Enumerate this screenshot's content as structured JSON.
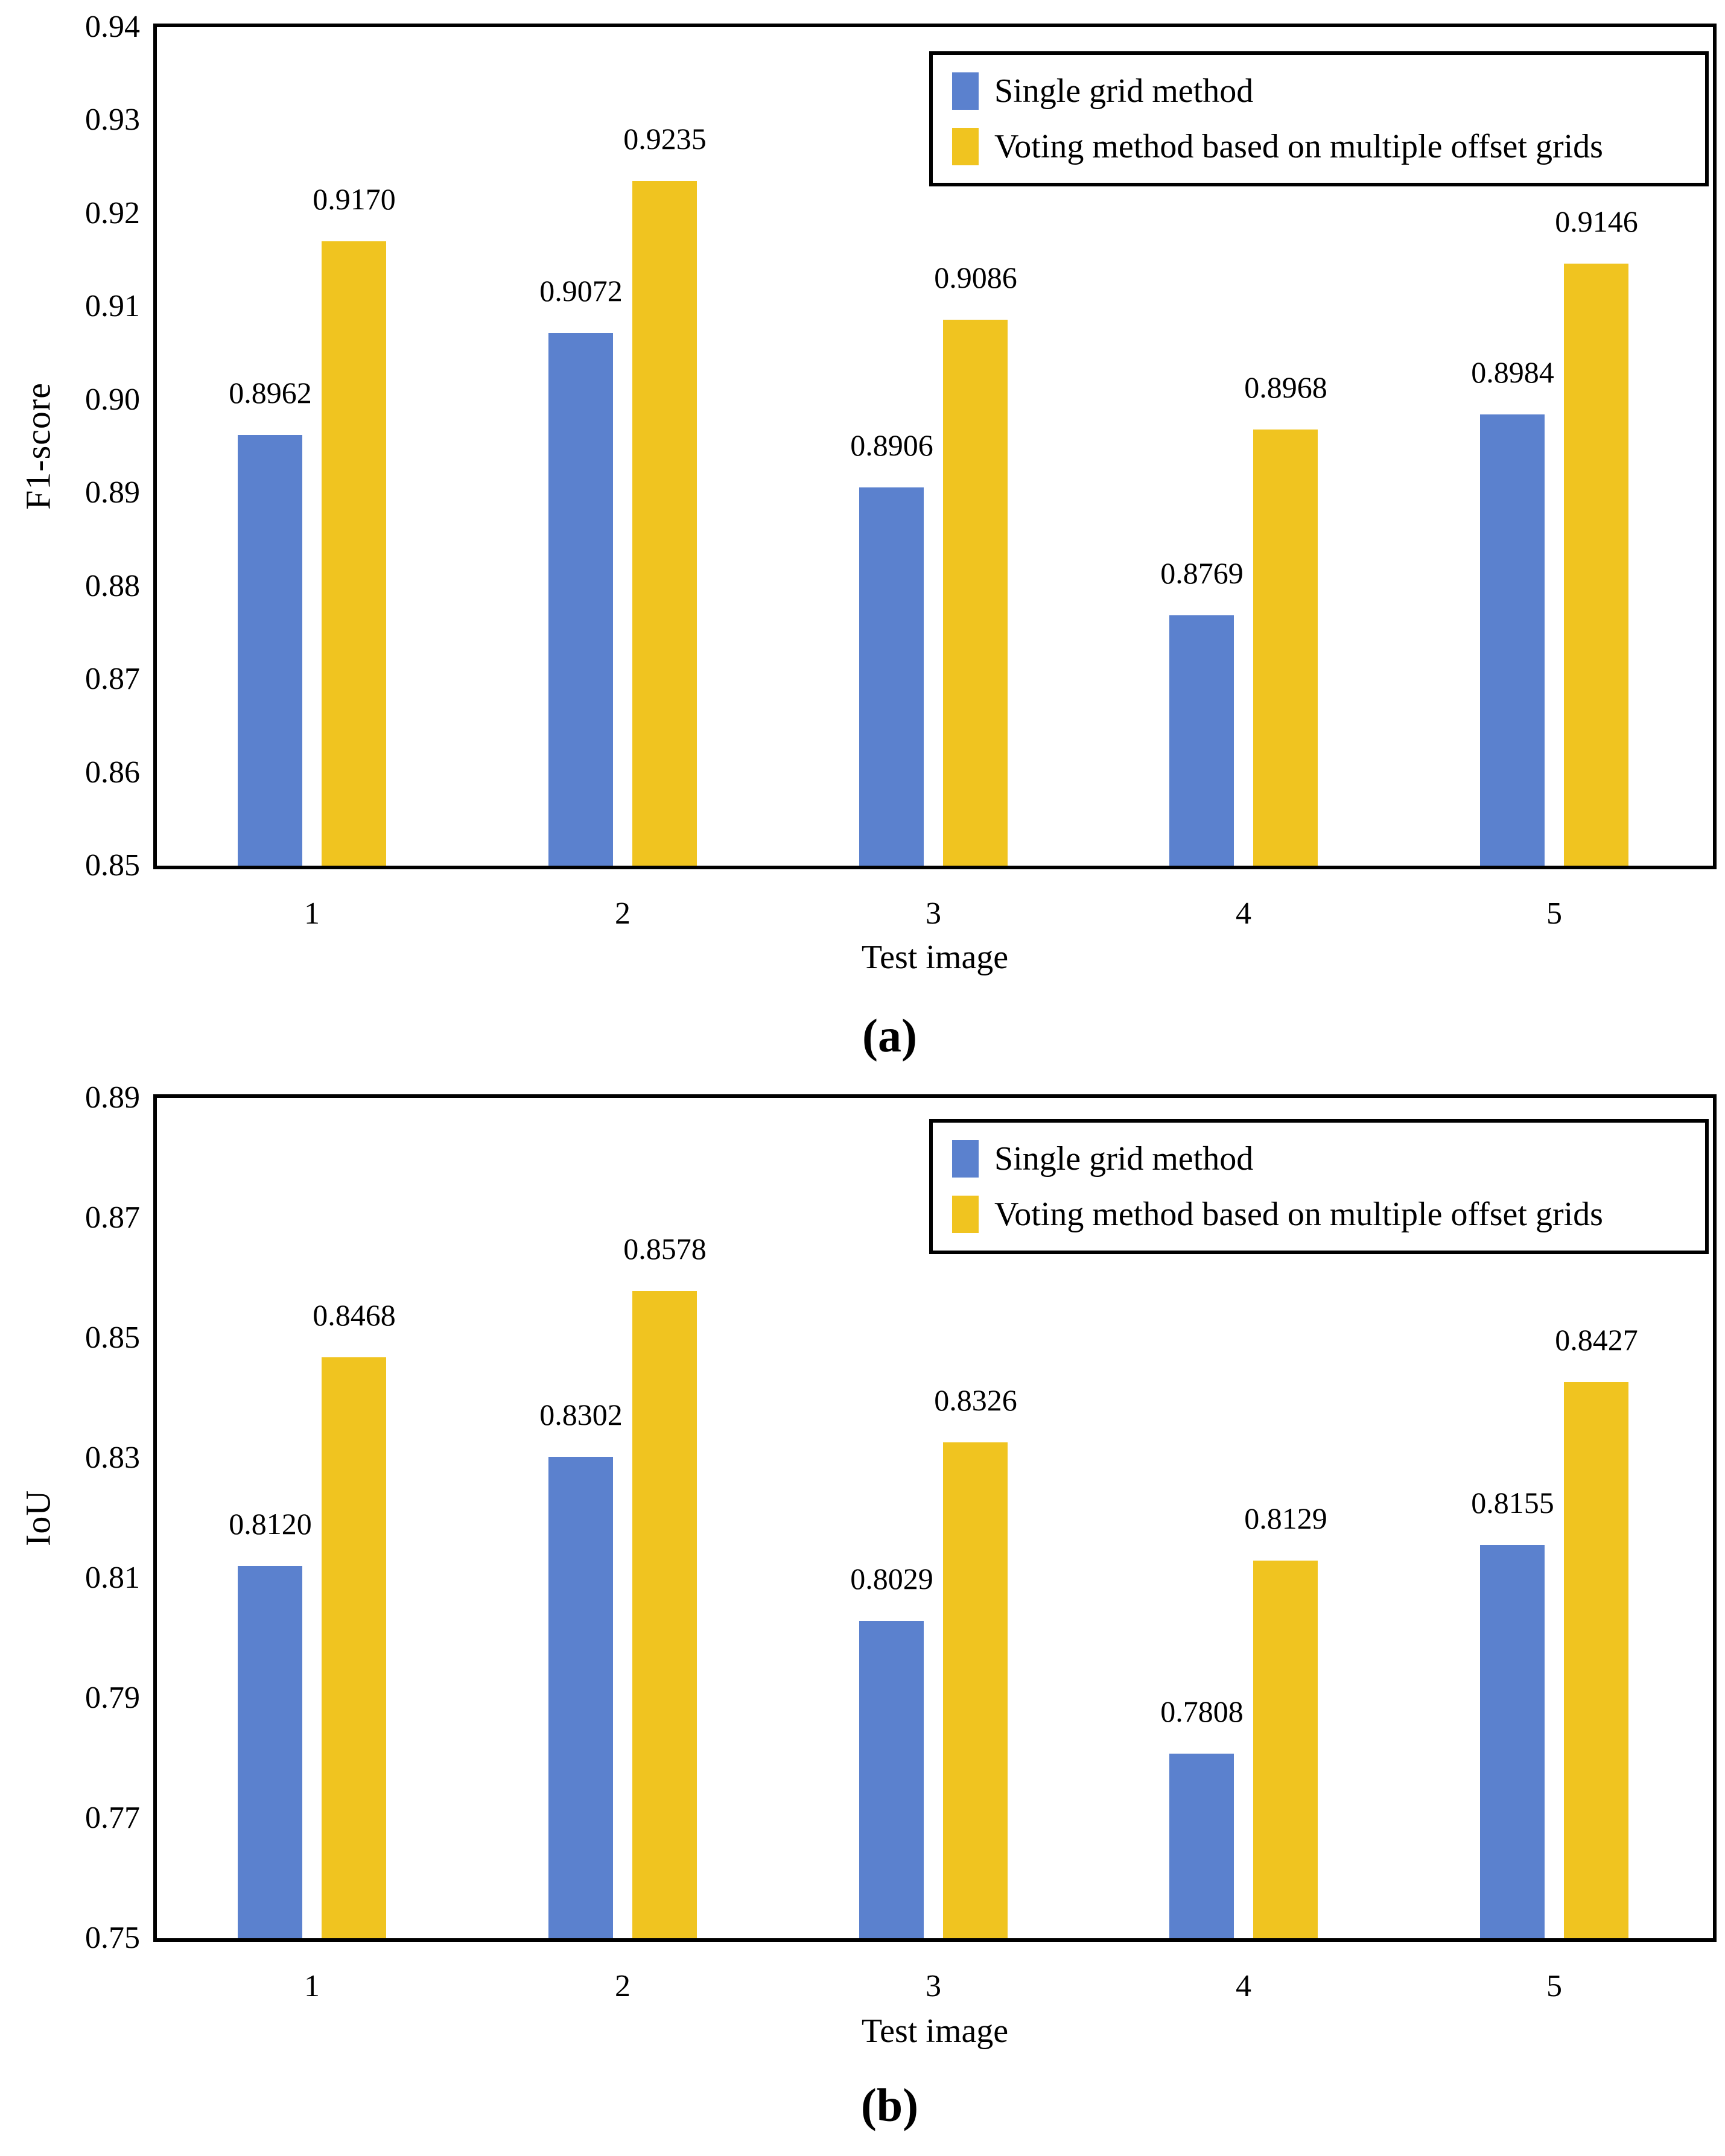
{
  "legend": {
    "items": [
      {
        "name": "Single grid method",
        "color": "#5B81CE"
      },
      {
        "name": "Voting method based on multiple offset grids",
        "color": "#F0C420"
      }
    ]
  },
  "chart_data": [
    {
      "type": "bar",
      "panel": "a",
      "caption": "(a)",
      "title": "",
      "xlabel": "Test image",
      "ylabel": "F1-score",
      "categories": [
        "1",
        "2",
        "3",
        "4",
        "5"
      ],
      "series": [
        {
          "name": "Single grid method",
          "color": "#5B81CE",
          "values": [
            0.8962,
            0.9072,
            0.8906,
            0.8769,
            0.8984
          ],
          "labels": [
            "0.8962",
            "0.9072",
            "0.8906",
            "0.8769",
            "0.8984"
          ]
        },
        {
          "name": "Voting method based on multiple offset grids",
          "color": "#F0C420",
          "values": [
            0.917,
            0.9235,
            0.9086,
            0.8968,
            0.9146
          ],
          "labels": [
            "0.9170",
            "0.9235",
            "0.9086",
            "0.8968",
            "0.9146"
          ]
        }
      ],
      "ylim": [
        0.85,
        0.94
      ],
      "ytick_step": 0.01,
      "yticks": [
        "0.94",
        "0.93",
        "0.92",
        "0.91",
        "0.90",
        "0.89",
        "0.88",
        "0.87",
        "0.86",
        "0.85"
      ],
      "grid": false,
      "legend_position": "top-right"
    },
    {
      "type": "bar",
      "panel": "b",
      "caption": "(b)",
      "title": "",
      "xlabel": "Test image",
      "ylabel": "IoU",
      "categories": [
        "1",
        "2",
        "3",
        "4",
        "5"
      ],
      "series": [
        {
          "name": "Single grid method",
          "color": "#5B81CE",
          "values": [
            0.812,
            0.8302,
            0.8029,
            0.7808,
            0.8155
          ],
          "labels": [
            "0.8120",
            "0.8302",
            "0.8029",
            "0.7808",
            "0.8155"
          ]
        },
        {
          "name": "Voting method based on multiple offset grids",
          "color": "#F0C420",
          "values": [
            0.8468,
            0.8578,
            0.8326,
            0.8129,
            0.8427
          ],
          "labels": [
            "0.8468",
            "0.8578",
            "0.8326",
            "0.8129",
            "0.8427"
          ]
        }
      ],
      "ylim": [
        0.75,
        0.89
      ],
      "ytick_step": 0.02,
      "yticks": [
        "0.89",
        "0.87",
        "0.85",
        "0.83",
        "0.81",
        "0.79",
        "0.77",
        "0.75"
      ],
      "grid": false,
      "legend_position": "top-right"
    }
  ]
}
